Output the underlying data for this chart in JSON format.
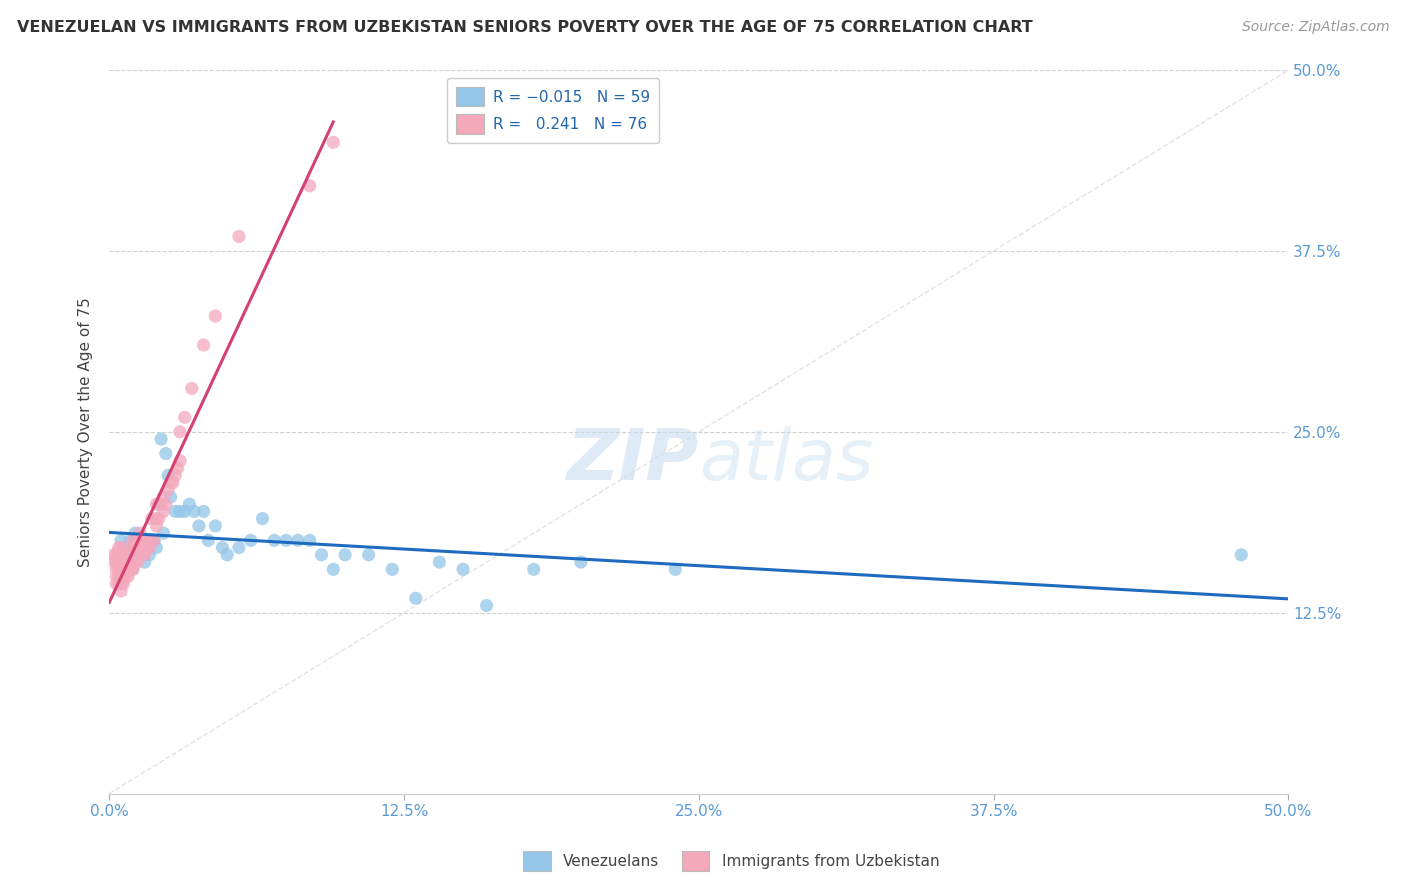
{
  "title": "VENEZUELAN VS IMMIGRANTS FROM UZBEKISTAN SENIORS POVERTY OVER THE AGE OF 75 CORRELATION CHART",
  "source": "Source: ZipAtlas.com",
  "ylabel": "Seniors Poverty Over the Age of 75",
  "xlim": [
    0.0,
    0.5
  ],
  "ylim": [
    0.0,
    0.5
  ],
  "xtick_labels": [
    "0.0%",
    "12.5%",
    "25.0%",
    "37.5%",
    "50.0%"
  ],
  "xtick_vals": [
    0.0,
    0.125,
    0.25,
    0.375,
    0.5
  ],
  "ytick_labels": [
    "12.5%",
    "25.0%",
    "37.5%",
    "50.0%"
  ],
  "ytick_vals": [
    0.125,
    0.25,
    0.375,
    0.5
  ],
  "color_blue": "#93c6e8",
  "color_pink": "#f4a8bc",
  "color_blue_line": "#1f6bbf",
  "color_pink_line": "#d44070",
  "color_diag": "#d8d8d8",
  "watermark_zip": "ZIP",
  "watermark_atlas": "atlas",
  "legend_label1": "Venezuelans",
  "legend_label2": "Immigrants from Uzbekistan",
  "venezuelan_x": [
    0.005,
    0.006,
    0.007,
    0.008,
    0.009,
    0.009,
    0.01,
    0.01,
    0.011,
    0.011,
    0.012,
    0.012,
    0.013,
    0.013,
    0.014,
    0.015,
    0.015,
    0.016,
    0.017,
    0.018,
    0.019,
    0.02,
    0.021,
    0.022,
    0.023,
    0.024,
    0.025,
    0.026,
    0.028,
    0.03,
    0.032,
    0.034,
    0.036,
    0.038,
    0.04,
    0.042,
    0.045,
    0.048,
    0.05,
    0.055,
    0.06,
    0.065,
    0.07,
    0.075,
    0.08,
    0.085,
    0.09,
    0.095,
    0.1,
    0.11,
    0.12,
    0.13,
    0.14,
    0.15,
    0.16,
    0.18,
    0.2,
    0.24,
    0.48
  ],
  "venezuelan_y": [
    0.175,
    0.17,
    0.165,
    0.16,
    0.17,
    0.175,
    0.155,
    0.165,
    0.175,
    0.18,
    0.165,
    0.175,
    0.17,
    0.175,
    0.165,
    0.16,
    0.17,
    0.175,
    0.165,
    0.175,
    0.175,
    0.17,
    0.2,
    0.245,
    0.18,
    0.235,
    0.22,
    0.205,
    0.195,
    0.195,
    0.195,
    0.2,
    0.195,
    0.185,
    0.195,
    0.175,
    0.185,
    0.17,
    0.165,
    0.17,
    0.175,
    0.19,
    0.175,
    0.175,
    0.175,
    0.175,
    0.165,
    0.155,
    0.165,
    0.165,
    0.155,
    0.135,
    0.16,
    0.155,
    0.13,
    0.155,
    0.16,
    0.155,
    0.165
  ],
  "uzbekistan_x": [
    0.002,
    0.002,
    0.003,
    0.003,
    0.003,
    0.003,
    0.003,
    0.004,
    0.004,
    0.004,
    0.004,
    0.004,
    0.004,
    0.005,
    0.005,
    0.005,
    0.005,
    0.005,
    0.005,
    0.005,
    0.006,
    0.006,
    0.006,
    0.007,
    0.007,
    0.007,
    0.008,
    0.008,
    0.008,
    0.009,
    0.009,
    0.009,
    0.01,
    0.01,
    0.01,
    0.01,
    0.011,
    0.011,
    0.012,
    0.012,
    0.013,
    0.013,
    0.013,
    0.014,
    0.014,
    0.015,
    0.015,
    0.015,
    0.016,
    0.017,
    0.017,
    0.018,
    0.018,
    0.019,
    0.02,
    0.02,
    0.02,
    0.021,
    0.022,
    0.023,
    0.023,
    0.024,
    0.025,
    0.026,
    0.027,
    0.028,
    0.029,
    0.03,
    0.03,
    0.032,
    0.035,
    0.04,
    0.045,
    0.055,
    0.085,
    0.095
  ],
  "uzbekistan_y": [
    0.16,
    0.165,
    0.145,
    0.15,
    0.155,
    0.16,
    0.165,
    0.145,
    0.15,
    0.155,
    0.16,
    0.165,
    0.17,
    0.14,
    0.145,
    0.15,
    0.155,
    0.16,
    0.165,
    0.17,
    0.145,
    0.155,
    0.16,
    0.15,
    0.155,
    0.165,
    0.15,
    0.155,
    0.165,
    0.155,
    0.16,
    0.17,
    0.155,
    0.16,
    0.17,
    0.175,
    0.16,
    0.17,
    0.16,
    0.175,
    0.165,
    0.175,
    0.18,
    0.165,
    0.17,
    0.165,
    0.17,
    0.175,
    0.17,
    0.17,
    0.175,
    0.175,
    0.19,
    0.175,
    0.185,
    0.19,
    0.2,
    0.19,
    0.2,
    0.195,
    0.205,
    0.2,
    0.21,
    0.215,
    0.215,
    0.22,
    0.225,
    0.23,
    0.25,
    0.26,
    0.28,
    0.31,
    0.33,
    0.385,
    0.42,
    0.45
  ]
}
